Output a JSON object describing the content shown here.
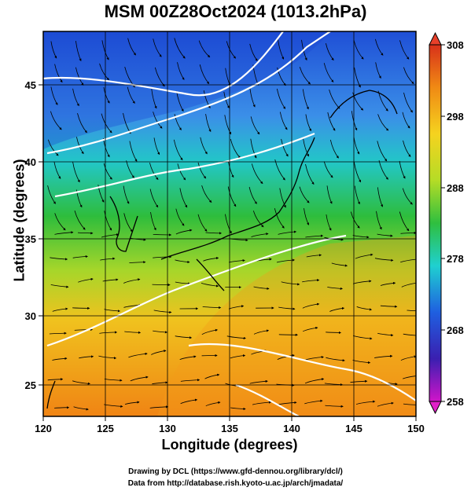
{
  "title": "MSM 00Z28Oct2024 (1013.2hPa)",
  "x_axis": {
    "label": "Longitude (degrees)",
    "min": 120,
    "max": 150,
    "ticks": [
      "120",
      "125",
      "130",
      "135",
      "140",
      "145",
      "150"
    ]
  },
  "y_axis": {
    "label": "Latitude  (degrees)",
    "min": 22.5,
    "max": 47.5,
    "ticks": [
      "25",
      "30",
      "35",
      "40",
      "45"
    ]
  },
  "colorbar": {
    "min": 258,
    "max": 308,
    "ticks": [
      "258",
      "268",
      "278",
      "288",
      "298",
      "308"
    ]
  },
  "credits": {
    "line1": "Drawing by DCL (https://www.gfd-dennou.org/library/dcl/)",
    "line2": "Data from http://database.rish.kyoto-u.ac.jp/arch/jmadata/"
  },
  "colors": {
    "cold": "#1f4fd6",
    "mid": "#2fbf3f",
    "warm": "#f08a14",
    "contour": "#ffffff",
    "coast": "#000000"
  }
}
